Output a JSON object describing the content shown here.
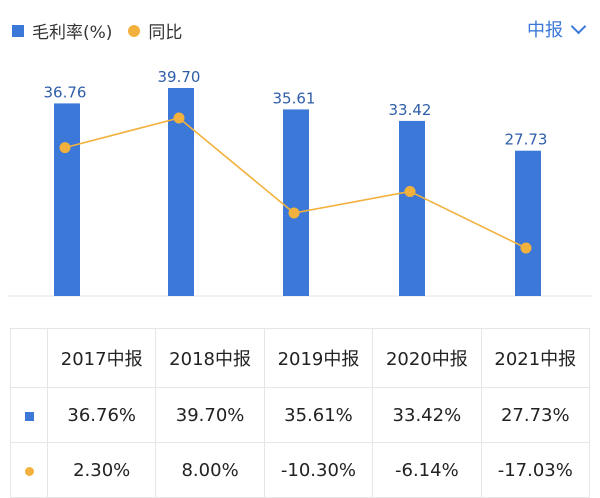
{
  "legend": {
    "series1": "毛利率(%)",
    "series2": "同比"
  },
  "period_selector": {
    "label": "中报"
  },
  "colors": {
    "bar": "#3b78d8",
    "line": "#f2b13c",
    "positive": "#d9504c",
    "negative": "#1aa56b"
  },
  "chart_data": {
    "type": "bar",
    "categories": [
      "2017中报",
      "2018中报",
      "2019中报",
      "2020中报",
      "2021中报"
    ],
    "series": [
      {
        "name": "毛利率(%)",
        "type": "bar",
        "values": [
          36.76,
          39.7,
          35.61,
          33.42,
          27.73
        ]
      },
      {
        "name": "同比",
        "type": "line",
        "values": [
          2.3,
          8.0,
          -10.3,
          -6.14,
          -17.03
        ]
      }
    ],
    "bar_labels": [
      "36.76",
      "39.70",
      "35.61",
      "33.42",
      "27.73"
    ]
  },
  "table": {
    "headers": [
      "2017中报",
      "2018中报",
      "2019中报",
      "2020中报",
      "2021中报"
    ],
    "rows": [
      {
        "marker": "bar",
        "cells": [
          "36.76%",
          "39.70%",
          "35.61%",
          "33.42%",
          "27.73%"
        ]
      },
      {
        "marker": "line",
        "cells": [
          "2.30%",
          "8.00%",
          "-10.30%",
          "-6.14%",
          "-17.03%"
        ]
      }
    ]
  }
}
